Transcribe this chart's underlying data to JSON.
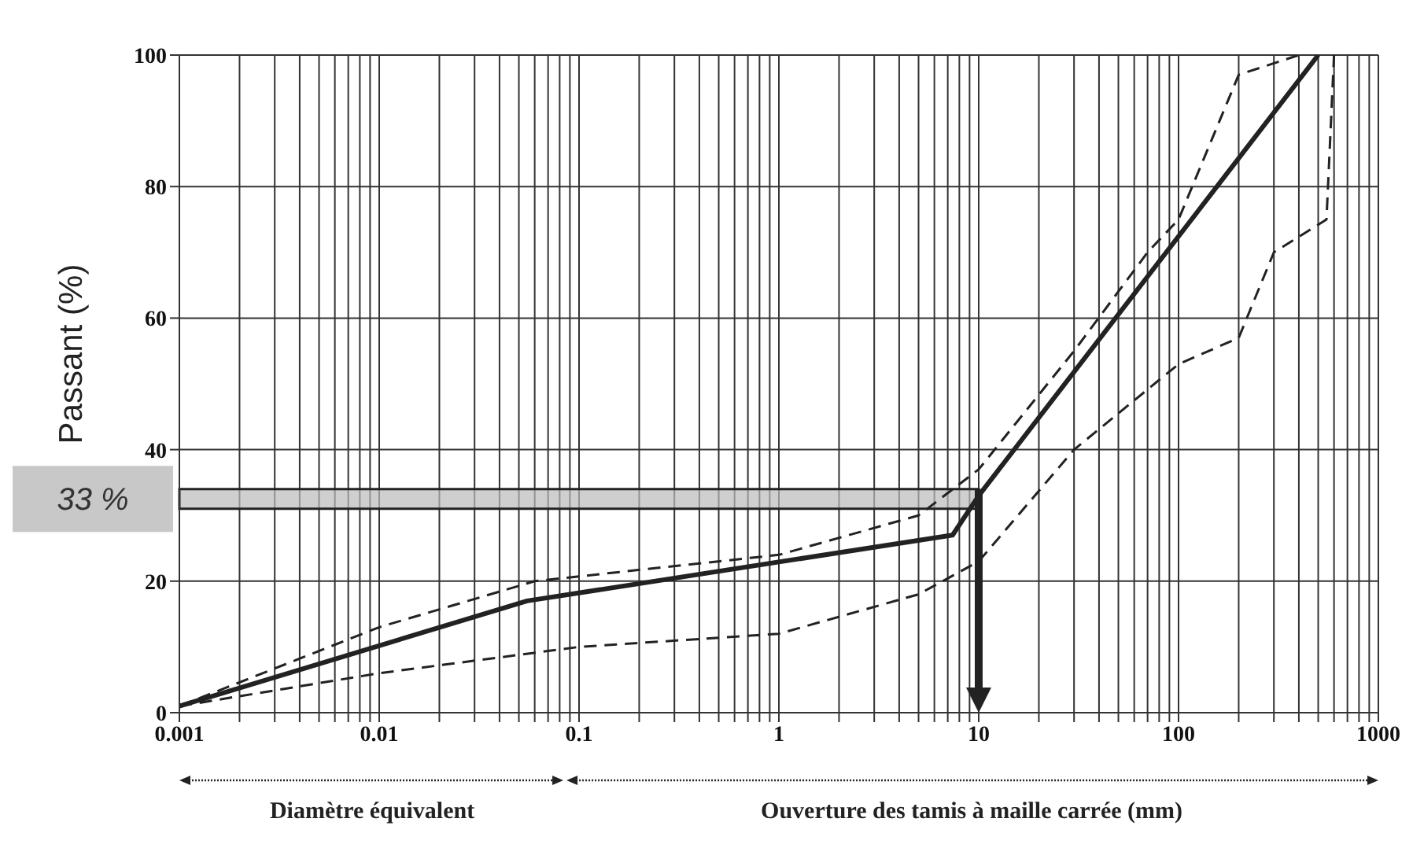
{
  "chart_data": {
    "type": "line",
    "ylabel": "Passant (%)",
    "xlim": [
      0.001,
      1000
    ],
    "ylim": [
      0,
      100
    ],
    "log": "x",
    "grid": "xy",
    "marker": "none",
    "xticks": [
      0.001,
      {
        "value": 0.002,
        "label": null
      },
      {
        "value": 0.003,
        "label": null
      },
      {
        "value": 0.004,
        "label": null
      },
      {
        "value": 0.005,
        "label": null
      },
      {
        "value": 0.006,
        "label": null
      },
      {
        "value": 0.007,
        "label": null
      },
      {
        "value": 0.008,
        "label": null
      },
      {
        "value": 0.009,
        "label": null
      },
      0.01,
      {
        "value": 0.02,
        "label": null
      },
      {
        "value": 0.03,
        "label": null
      },
      {
        "value": 0.04,
        "label": null
      },
      {
        "value": 0.05,
        "label": null
      },
      {
        "value": 0.06,
        "label": null
      },
      {
        "value": 0.07,
        "label": null
      },
      {
        "value": 0.08,
        "label": null
      },
      {
        "value": 0.09,
        "label": null
      },
      0.1,
      {
        "value": 0.2,
        "label": null
      },
      {
        "value": 0.3,
        "label": null
      },
      {
        "value": 0.4,
        "label": null
      },
      {
        "value": 0.5,
        "label": null
      },
      {
        "value": 0.6,
        "label": null
      },
      {
        "value": 0.7,
        "label": null
      },
      {
        "value": 0.8,
        "label": null
      },
      {
        "value": 0.9,
        "label": null
      },
      1,
      {
        "value": 2,
        "label": null
      },
      {
        "value": 3,
        "label": null
      },
      {
        "value": 4,
        "label": null
      },
      {
        "value": 5,
        "label": null
      },
      {
        "value": 6,
        "label": null
      },
      {
        "value": 7,
        "label": null
      },
      {
        "value": 8,
        "label": null
      },
      {
        "value": 9,
        "label": null
      },
      10,
      {
        "value": 20,
        "label": null
      },
      {
        "value": 30,
        "label": null
      },
      {
        "value": 40,
        "label": null
      },
      {
        "value": 50,
        "label": null
      },
      {
        "value": 60,
        "label": null
      },
      {
        "value": 70,
        "label": null
      },
      {
        "value": 80,
        "label": null
      },
      {
        "value": 90,
        "label": null
      },
      100,
      {
        "value": 200,
        "label": null
      },
      {
        "value": 300,
        "label": null
      },
      {
        "value": 400,
        "label": null
      },
      {
        "value": 500,
        "label": null
      },
      {
        "value": 600,
        "label": null
      },
      {
        "value": 700,
        "label": null
      },
      {
        "value": 800,
        "label": null
      },
      {
        "value": 900,
        "label": null
      },
      1000
    ],
    "yticks": [
      0,
      20,
      40,
      60,
      80,
      100
    ],
    "series": [
      {
        "color": "#222222",
        "line_style": "solid",
        "x": [
          0.001,
          0.055,
          7.4,
          10,
          500
        ],
        "values": [
          1,
          17,
          27,
          33,
          100
        ]
      },
      {
        "color": "#222222",
        "line_style": "dashed",
        "x": [
          0.001,
          0.01,
          0.06,
          1,
          5,
          10,
          30,
          70,
          100,
          200,
          400
        ],
        "values": [
          1,
          13,
          20,
          24,
          30,
          37,
          55,
          70,
          75,
          97,
          100
        ]
      },
      {
        "color": "#222222",
        "line_style": "dashed",
        "x": [
          0.001,
          0.01,
          0.1,
          1,
          5,
          10,
          30,
          100,
          200,
          300,
          550,
          600
        ],
        "values": [
          1,
          6,
          10,
          12,
          18,
          23,
          40,
          53,
          57,
          70,
          75,
          100
        ]
      }
    ],
    "bands": [
      {
        "axis": "y",
        "from": 31,
        "to": 34,
        "label": "33 %",
        "color": "#bbbbbb"
      }
    ],
    "ref_lines": [
      {
        "axis": "x",
        "value": 10,
        "color": "#222222"
      }
    ],
    "annotations": [
      "Diamètre équivalent",
      "Ouverture des tamis à maille carrée (mm)"
    ]
  }
}
